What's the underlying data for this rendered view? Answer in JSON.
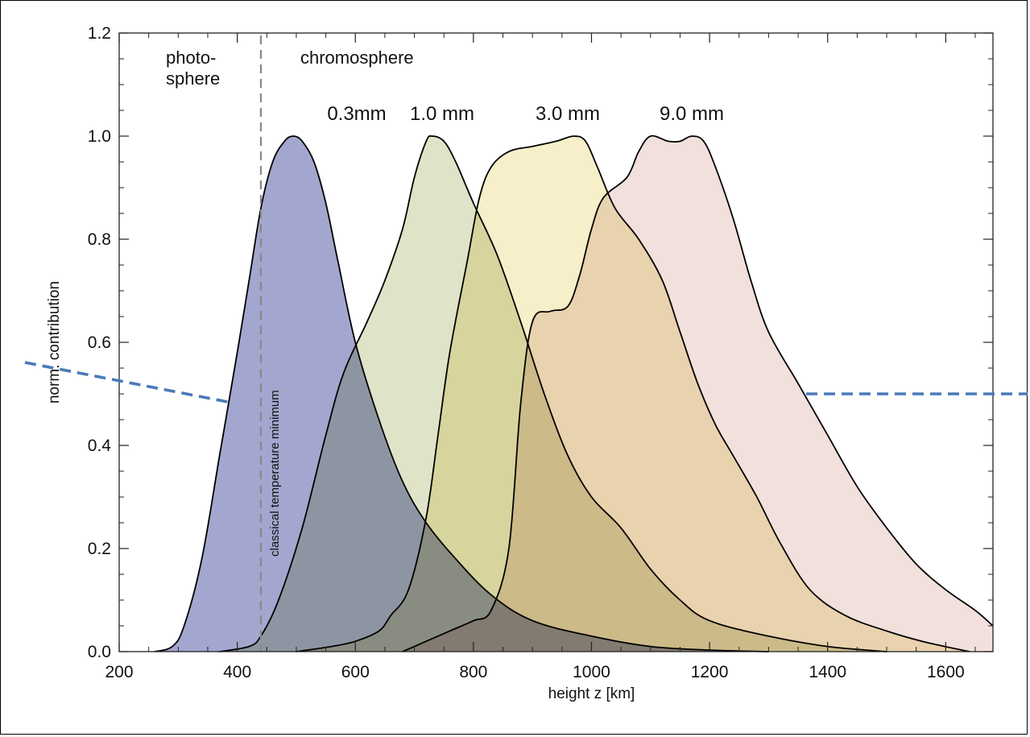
{
  "chart_data": {
    "type": "area",
    "title": "",
    "xlabel": "height z [km]",
    "ylabel": "norm. contribution",
    "xlim": [
      200,
      1680
    ],
    "ylim": [
      0,
      1.2
    ],
    "x_ticks": [
      "200",
      "400",
      "600",
      "800",
      "1000",
      "1200",
      "1400",
      "1600"
    ],
    "y_ticks": [
      "0.0",
      "0.2",
      "0.4",
      "0.6",
      "0.8",
      "1.0",
      "1.2"
    ],
    "grid": false,
    "series": [
      {
        "name": "0.3mm",
        "fill_color": "#a3a7cf",
        "points": [
          [
            260,
            0
          ],
          [
            290,
            0.01
          ],
          [
            310,
            0.05
          ],
          [
            340,
            0.18
          ],
          [
            370,
            0.38
          ],
          [
            400,
            0.58
          ],
          [
            420,
            0.72
          ],
          [
            440,
            0.86
          ],
          [
            460,
            0.95
          ],
          [
            480,
            0.99
          ],
          [
            495,
            1.0
          ],
          [
            510,
            0.99
          ],
          [
            530,
            0.95
          ],
          [
            550,
            0.87
          ],
          [
            570,
            0.76
          ],
          [
            600,
            0.6
          ],
          [
            640,
            0.45
          ],
          [
            680,
            0.33
          ],
          [
            720,
            0.25
          ],
          [
            770,
            0.18
          ],
          [
            830,
            0.11
          ],
          [
            900,
            0.06
          ],
          [
            1000,
            0.03
          ],
          [
            1100,
            0.01
          ],
          [
            1200,
            0.003
          ],
          [
            1300,
            0
          ]
        ]
      },
      {
        "name": "1.0 mm",
        "fill_color": "#dfe3c8",
        "points": [
          [
            370,
            0
          ],
          [
            420,
            0.01
          ],
          [
            440,
            0.03
          ],
          [
            470,
            0.1
          ],
          [
            510,
            0.24
          ],
          [
            550,
            0.42
          ],
          [
            580,
            0.54
          ],
          [
            620,
            0.64
          ],
          [
            650,
            0.72
          ],
          [
            680,
            0.82
          ],
          [
            700,
            0.92
          ],
          [
            720,
            0.99
          ],
          [
            730,
            1.0
          ],
          [
            750,
            0.99
          ],
          [
            770,
            0.95
          ],
          [
            800,
            0.87
          ],
          [
            840,
            0.77
          ],
          [
            880,
            0.64
          ],
          [
            920,
            0.5
          ],
          [
            960,
            0.38
          ],
          [
            1000,
            0.3
          ],
          [
            1050,
            0.24
          ],
          [
            1100,
            0.16
          ],
          [
            1150,
            0.1
          ],
          [
            1200,
            0.06
          ],
          [
            1300,
            0.03
          ],
          [
            1400,
            0.01
          ],
          [
            1500,
            0
          ]
        ]
      },
      {
        "name": "3.0 mm",
        "fill_color": "#f6efc9",
        "points": [
          [
            500,
            0
          ],
          [
            560,
            0.01
          ],
          [
            600,
            0.02
          ],
          [
            640,
            0.04
          ],
          [
            660,
            0.07
          ],
          [
            690,
            0.12
          ],
          [
            720,
            0.26
          ],
          [
            740,
            0.42
          ],
          [
            760,
            0.58
          ],
          [
            790,
            0.76
          ],
          [
            810,
            0.88
          ],
          [
            830,
            0.94
          ],
          [
            860,
            0.97
          ],
          [
            900,
            0.98
          ],
          [
            940,
            0.99
          ],
          [
            970,
            1.0
          ],
          [
            990,
            0.99
          ],
          [
            1010,
            0.94
          ],
          [
            1040,
            0.86
          ],
          [
            1080,
            0.8
          ],
          [
            1120,
            0.72
          ],
          [
            1150,
            0.62
          ],
          [
            1180,
            0.52
          ],
          [
            1210,
            0.44
          ],
          [
            1240,
            0.38
          ],
          [
            1280,
            0.3
          ],
          [
            1320,
            0.21
          ],
          [
            1370,
            0.12
          ],
          [
            1430,
            0.07
          ],
          [
            1500,
            0.04
          ],
          [
            1560,
            0.02
          ],
          [
            1640,
            0
          ]
        ]
      },
      {
        "name": "9.0 mm",
        "fill_color": "#f2e0dd",
        "points": [
          [
            680,
            0
          ],
          [
            720,
            0.02
          ],
          [
            760,
            0.04
          ],
          [
            800,
            0.06
          ],
          [
            830,
            0.08
          ],
          [
            860,
            0.2
          ],
          [
            880,
            0.48
          ],
          [
            900,
            0.64
          ],
          [
            930,
            0.66
          ],
          [
            960,
            0.67
          ],
          [
            980,
            0.73
          ],
          [
            1000,
            0.82
          ],
          [
            1020,
            0.88
          ],
          [
            1060,
            0.92
          ],
          [
            1080,
            0.97
          ],
          [
            1100,
            1.0
          ],
          [
            1130,
            0.99
          ],
          [
            1150,
            0.99
          ],
          [
            1170,
            1.0
          ],
          [
            1190,
            0.99
          ],
          [
            1210,
            0.94
          ],
          [
            1240,
            0.84
          ],
          [
            1270,
            0.72
          ],
          [
            1300,
            0.62
          ],
          [
            1350,
            0.52
          ],
          [
            1400,
            0.42
          ],
          [
            1450,
            0.32
          ],
          [
            1500,
            0.24
          ],
          [
            1550,
            0.17
          ],
          [
            1600,
            0.12
          ],
          [
            1650,
            0.08
          ],
          [
            1680,
            0.05
          ]
        ]
      }
    ],
    "reference_line": {
      "x": 440,
      "label": "classical temperature minimum",
      "style": "dashed"
    },
    "region_labels": {
      "left": [
        "photo-",
        "sphere"
      ],
      "right": "chromosphere"
    },
    "annotation_arrow_color": "#4a7ab8",
    "overlap_colors": {
      "blue_green": "#c3c8c2",
      "blue_yellow": "#cbc4b6"
    }
  }
}
